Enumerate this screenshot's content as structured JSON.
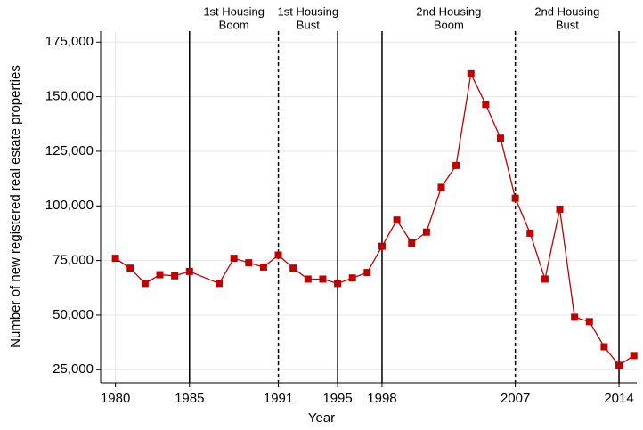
{
  "chart_data": {
    "type": "line",
    "x_label": "Year",
    "y_label": "Number of new registered real estate properties",
    "x": [
      1980,
      1981,
      1982,
      1983,
      1984,
      1985,
      1987,
      1988,
      1989,
      1990,
      1991,
      1992,
      1993,
      1994,
      1995,
      1996,
      1997,
      1998,
      1999,
      2000,
      2001,
      2002,
      2003,
      2004,
      2005,
      2006,
      2007,
      2008,
      2009,
      2010,
      2011,
      2012,
      2013,
      2014,
      2015
    ],
    "series": [
      {
        "color": "#c00000",
        "values": [
          76000,
          71500,
          64500,
          68500,
          68000,
          70000,
          64500,
          76000,
          74000,
          72000,
          77500,
          71500,
          66500,
          66500,
          64500,
          67000,
          69500,
          81500,
          93500,
          83000,
          88000,
          108500,
          118500,
          160500,
          146500,
          131000,
          103500,
          87500,
          66500,
          98500,
          49000,
          47000,
          35500,
          27000,
          31500
        ]
      }
    ],
    "xlim": [
      1979,
      2015.2
    ],
    "ylim": [
      19000,
      180000
    ],
    "xticks": [
      1980,
      1985,
      1991,
      1995,
      1998,
      2007,
      2014
    ],
    "yticks": [
      {
        "value": 25000,
        "label": "25,000"
      },
      {
        "value": 50000,
        "label": "50,000"
      },
      {
        "value": 75000,
        "label": "75,000"
      },
      {
        "value": 100000,
        "label": "100,000"
      },
      {
        "value": 125000,
        "label": "125,000"
      },
      {
        "value": 150000,
        "label": "150,000"
      },
      {
        "value": 175000,
        "label": "175,000"
      }
    ],
    "grid": true,
    "vlines": [
      {
        "x": 1985,
        "style": "solid"
      },
      {
        "x": 1991,
        "style": "dashed"
      },
      {
        "x": 1995,
        "style": "solid"
      },
      {
        "x": 1998,
        "style": "solid"
      },
      {
        "x": 2007,
        "style": "dashed"
      },
      {
        "x": 2014,
        "style": "solid"
      }
    ],
    "annotations": [
      {
        "lines": [
          "1st Housing",
          "Boom"
        ],
        "start": 1985,
        "end": 1991
      },
      {
        "lines": [
          "1st Housing",
          "Bust"
        ],
        "start": 1991,
        "end": 1995
      },
      {
        "lines": [
          "2nd Housing",
          "Boom"
        ],
        "start": 1998,
        "end": 2007
      },
      {
        "lines": [
          "2nd Housing",
          "Bust"
        ],
        "start": 2007,
        "end": 2014
      }
    ]
  }
}
